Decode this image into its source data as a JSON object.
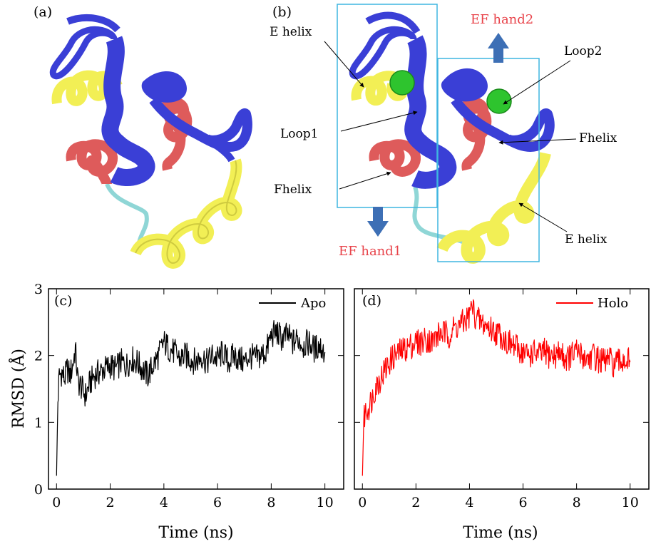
{
  "structures": {
    "panel_a": {
      "label": "(a)"
    },
    "panel_b": {
      "label": "(b)",
      "annotations": {
        "e_helix_left": "E helix",
        "loop1": "Loop1",
        "f_helix_left": "Fhelix",
        "ef_hand2": "EF hand2",
        "loop2": "Loop2",
        "f_helix_right": "Fhelix",
        "e_helix_right": "E helix",
        "ef_hand1": "EF hand1"
      }
    },
    "colors": {
      "strand": "#3a3fd6",
      "helix_yellow": "#f2ef55",
      "helix_red": "#de5b5b",
      "coil": "#8fd6d6",
      "ion": "#2ec42e",
      "box": "#3fb6e0",
      "arrow": "#3d6fb5",
      "ef_label": "#e8434a"
    }
  },
  "chart_data": [
    {
      "type": "line",
      "panel_label": "(c)",
      "xlabel": "Time (ns)",
      "ylabel": "RMSD (Å)",
      "xlim": [
        -0.3,
        10.7
      ],
      "ylim": [
        0,
        3
      ],
      "xticks": [
        0,
        2,
        4,
        6,
        8,
        10
      ],
      "yticks": [
        0,
        1,
        2,
        3
      ],
      "legend": "top-right",
      "series": [
        {
          "name": "Apo",
          "color": "#000000",
          "x": [
            0,
            0.05,
            0.1,
            0.2,
            0.3,
            0.4,
            0.5,
            0.6,
            0.7,
            0.8,
            0.9,
            1.0,
            1.1,
            1.2,
            1.4,
            1.6,
            1.8,
            2.0,
            2.2,
            2.4,
            2.6,
            2.8,
            3.0,
            3.2,
            3.4,
            3.6,
            3.8,
            4.0,
            4.2,
            4.4,
            4.6,
            4.8,
            5.0,
            5.2,
            5.4,
            5.6,
            5.8,
            6.0,
            6.2,
            6.4,
            6.6,
            6.8,
            7.0,
            7.2,
            7.4,
            7.6,
            7.8,
            8.0,
            8.2,
            8.4,
            8.6,
            8.8,
            9.0,
            9.2,
            9.4,
            9.6,
            9.8,
            10.0
          ],
          "y": [
            0.2,
            1.3,
            1.7,
            1.75,
            1.65,
            1.8,
            1.7,
            1.85,
            2.1,
            1.6,
            1.55,
            1.45,
            1.4,
            1.55,
            1.7,
            1.75,
            1.8,
            1.85,
            1.8,
            1.9,
            1.85,
            1.95,
            1.9,
            1.8,
            1.7,
            1.85,
            2.0,
            2.2,
            2.1,
            2.05,
            1.95,
            2.0,
            1.95,
            1.9,
            2.0,
            1.9,
            2.0,
            1.95,
            2.05,
            1.9,
            2.0,
            1.95,
            1.9,
            2.0,
            1.95,
            2.0,
            2.05,
            2.3,
            2.35,
            2.25,
            2.3,
            2.2,
            2.25,
            2.15,
            2.2,
            2.1,
            2.15,
            2.05
          ]
        }
      ]
    },
    {
      "type": "line",
      "panel_label": "(d)",
      "xlabel": "Time (ns)",
      "ylabel": "",
      "xlim": [
        -0.3,
        10.7
      ],
      "ylim": [
        0,
        3
      ],
      "xticks": [
        0,
        2,
        4,
        6,
        8,
        10
      ],
      "yticks": [
        0,
        1,
        2,
        3
      ],
      "legend": "top-right",
      "series": [
        {
          "name": "Holo",
          "color": "#ff0000",
          "x": [
            0,
            0.05,
            0.1,
            0.2,
            0.3,
            0.4,
            0.5,
            0.6,
            0.8,
            1.0,
            1.2,
            1.4,
            1.6,
            1.8,
            2.0,
            2.2,
            2.4,
            2.6,
            2.8,
            3.0,
            3.2,
            3.4,
            3.6,
            3.8,
            4.0,
            4.1,
            4.2,
            4.4,
            4.6,
            4.8,
            5.0,
            5.2,
            5.4,
            5.6,
            5.8,
            6.0,
            6.2,
            6.4,
            6.6,
            6.8,
            7.0,
            7.2,
            7.4,
            7.6,
            7.8,
            8.0,
            8.2,
            8.4,
            8.6,
            8.8,
            9.0,
            9.2,
            9.4,
            9.6,
            9.8,
            10.0
          ],
          "y": [
            0.2,
            1.0,
            1.15,
            1.2,
            1.3,
            1.4,
            1.55,
            1.6,
            1.75,
            1.9,
            2.0,
            2.05,
            2.1,
            2.15,
            2.2,
            2.2,
            2.25,
            2.2,
            2.3,
            2.35,
            2.3,
            2.4,
            2.45,
            2.5,
            2.6,
            2.75,
            2.6,
            2.5,
            2.45,
            2.4,
            2.35,
            2.3,
            2.2,
            2.15,
            2.1,
            2.05,
            2.0,
            2.05,
            2.0,
            2.05,
            2.0,
            2.0,
            2.05,
            1.95,
            2.0,
            2.05,
            2.0,
            1.95,
            2.0,
            1.95,
            1.9,
            1.95,
            1.85,
            1.9,
            1.95,
            1.9
          ]
        }
      ]
    }
  ]
}
